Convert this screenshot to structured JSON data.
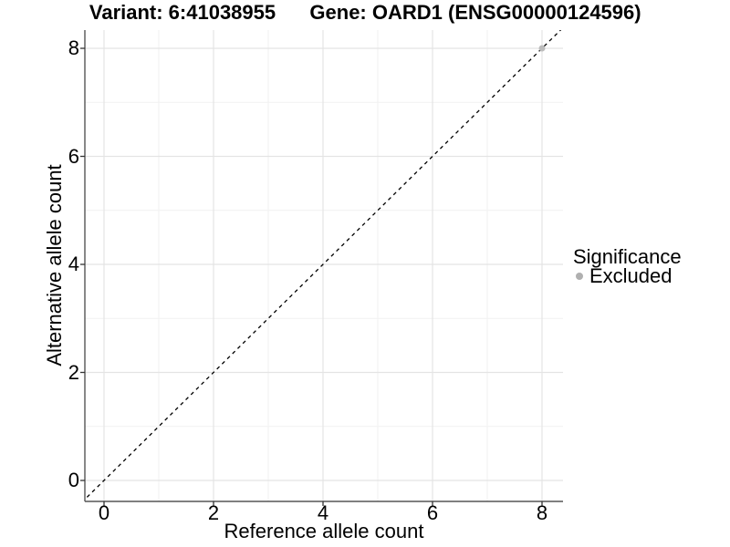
{
  "chart_data": {
    "type": "scatter",
    "titles": [
      "Variant: 6:41038955",
      "Gene: OARD1 (ENSG00000124596)"
    ],
    "xlabel": "Reference allele count",
    "ylabel": "Alternative allele count",
    "xlim": [
      -0.35,
      8.4
    ],
    "ylim": [
      -0.39,
      8.4
    ],
    "xticks": [
      0,
      2,
      4,
      6,
      8
    ],
    "yticks": [
      0,
      2,
      4,
      6,
      8
    ],
    "x_minor_ticks": [
      1,
      3,
      5,
      7
    ],
    "y_minor_ticks": [
      1,
      3,
      5,
      7
    ],
    "grid": "major and minor gridlines, light gray on white panel",
    "reference_line": {
      "kind": "identity y=x",
      "style": "dashed",
      "color": "#000000"
    },
    "series": [
      {
        "name": "Excluded",
        "color": "#bcbcbc",
        "points": [
          {
            "x": 8,
            "y": 8
          }
        ]
      }
    ],
    "legend": {
      "title": "Significance",
      "position": "right",
      "items": [
        {
          "label": "Excluded",
          "color": "#b0b0b0"
        }
      ]
    },
    "colors": {
      "axis_line": "#555555",
      "tick_mark": "#333333",
      "grid_major": "#e4e4e4",
      "grid_minor": "#f1f1f1",
      "text": "#000000"
    }
  }
}
